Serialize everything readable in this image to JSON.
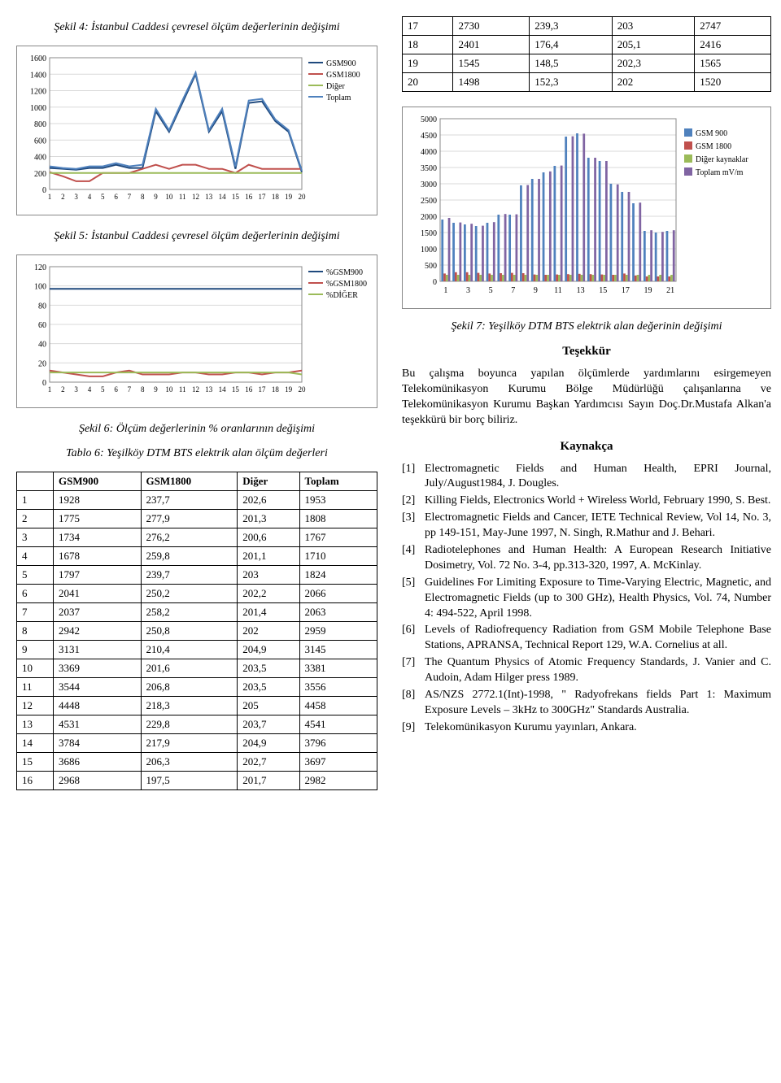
{
  "left": {
    "fig4_caption": "Şekil 4: İstanbul Caddesi çevresel ölçüm değerlerinin değişimi",
    "fig5_caption": "Şekil 5: İstanbul Caddesi çevresel ölçüm değerlerinin değişimi",
    "fig6_caption": "Şekil 6: Ölçüm değerlerinin % oranlarının değişimi",
    "table6_caption": "Tablo 6:  Yeşilköy DTM BTS elektrik alan ölçüm değerleri",
    "chart4": {
      "type": "line",
      "xticks": [
        "1",
        "2",
        "3",
        "4",
        "5",
        "6",
        "7",
        "8",
        "9",
        "10",
        "11",
        "12",
        "13",
        "14",
        "15",
        "16",
        "17",
        "18",
        "19",
        "20"
      ],
      "ylim": [
        0,
        1600
      ],
      "ytick_step": 200,
      "series": [
        {
          "name": "GSM900",
          "color": "#1f497d",
          "values": [
            260,
            250,
            240,
            260,
            260,
            300,
            260,
            260,
            950,
            700,
            1050,
            1400,
            700,
            950,
            250,
            1050,
            1070,
            830,
            700,
            210
          ]
        },
        {
          "name": "GSM1800",
          "color": "#c0504d",
          "values": [
            210,
            160,
            100,
            100,
            200,
            200,
            200,
            250,
            300,
            250,
            300,
            300,
            250,
            250,
            200,
            300,
            250,
            250,
            250,
            250
          ]
        },
        {
          "name": "Diğer",
          "color": "#9bbb59",
          "values": [
            200,
            200,
            200,
            200,
            200,
            200,
            200,
            200,
            200,
            200,
            200,
            200,
            200,
            200,
            200,
            200,
            200,
            200,
            200,
            200
          ]
        },
        {
          "name": "Toplam",
          "color": "#4f81bd",
          "values": [
            280,
            260,
            250,
            280,
            280,
            320,
            280,
            300,
            980,
            720,
            1080,
            1420,
            720,
            980,
            280,
            1080,
            1100,
            850,
            720,
            230
          ]
        }
      ],
      "grid_color": "#d9d9d9",
      "background_color": "#ffffff",
      "line_width": 2
    },
    "chart5": {
      "type": "line",
      "xticks": [
        "1",
        "2",
        "3",
        "4",
        "5",
        "6",
        "7",
        "8",
        "9",
        "10",
        "11",
        "12",
        "13",
        "14",
        "15",
        "16",
        "17",
        "18",
        "19",
        "20"
      ],
      "ylim": [
        0,
        120
      ],
      "ytick_step": 20,
      "series": [
        {
          "name": "%GSM900",
          "color": "#1f497d",
          "values": [
            97,
            97,
            97,
            97,
            97,
            97,
            97,
            97,
            97,
            97,
            97,
            97,
            97,
            97,
            97,
            97,
            97,
            97,
            97,
            97
          ]
        },
        {
          "name": "%GSM1800",
          "color": "#c0504d",
          "values": [
            12,
            10,
            8,
            6,
            6,
            10,
            12,
            8,
            8,
            8,
            10,
            10,
            8,
            8,
            10,
            10,
            8,
            10,
            10,
            12
          ]
        },
        {
          "name": "%DİĞER",
          "color": "#9bbb59",
          "values": [
            10,
            10,
            10,
            10,
            10,
            10,
            10,
            10,
            10,
            10,
            10,
            10,
            10,
            10,
            10,
            10,
            10,
            10,
            10,
            8
          ]
        }
      ],
      "grid_color": "#d9d9d9",
      "background_color": "#ffffff",
      "line_width": 2
    },
    "table6": {
      "columns": [
        "",
        "GSM900",
        "GSM1800",
        "Diğer",
        "Toplam"
      ],
      "rows": [
        [
          "1",
          "1928",
          "237,7",
          "202,6",
          "1953"
        ],
        [
          "2",
          "1775",
          "277,9",
          "201,3",
          "1808"
        ],
        [
          "3",
          "1734",
          "276,2",
          "200,6",
          "1767"
        ],
        [
          "4",
          "1678",
          "259,8",
          "201,1",
          "1710"
        ],
        [
          "5",
          "1797",
          "239,7",
          "203",
          "1824"
        ],
        [
          "6",
          "2041",
          "250,2",
          "202,2",
          "2066"
        ],
        [
          "7",
          "2037",
          "258,2",
          "201,4",
          "2063"
        ],
        [
          "8",
          "2942",
          "250,8",
          "202",
          "2959"
        ],
        [
          "9",
          "3131",
          "210,4",
          "204,9",
          "3145"
        ],
        [
          "10",
          "3369",
          "201,6",
          "203,5",
          "3381"
        ],
        [
          "11",
          "3544",
          "206,8",
          "203,5",
          "3556"
        ],
        [
          "12",
          "4448",
          "218,3",
          "205",
          "4458"
        ],
        [
          "13",
          "4531",
          "229,8",
          "203,7",
          "4541"
        ],
        [
          "14",
          "3784",
          "217,9",
          "204,9",
          "3796"
        ],
        [
          "15",
          "3686",
          "206,3",
          "202,7",
          "3697"
        ],
        [
          "16",
          "2968",
          "197,5",
          "201,7",
          "2982"
        ]
      ]
    }
  },
  "right": {
    "top_table": {
      "rows": [
        [
          "17",
          "2730",
          "239,3",
          "203",
          "2747"
        ],
        [
          "18",
          "2401",
          "176,4",
          "205,1",
          "2416"
        ],
        [
          "19",
          "1545",
          "148,5",
          "202,3",
          "1565"
        ],
        [
          "20",
          "1498",
          "152,3",
          "202",
          "1520"
        ]
      ]
    },
    "chart7": {
      "type": "bar",
      "xticks": [
        "1",
        "3",
        "5",
        "7",
        "9",
        "11",
        "13",
        "15",
        "17",
        "19",
        "21"
      ],
      "ylim": [
        0,
        5000
      ],
      "ytick_step": 500,
      "categories_count": 21,
      "series": [
        {
          "name": "GSM 900",
          "color": "#4f81bd",
          "values": [
            1900,
            1800,
            1750,
            1700,
            1800,
            2050,
            2050,
            2950,
            3150,
            3350,
            3550,
            4450,
            4550,
            3800,
            3700,
            3000,
            2750,
            2400,
            1550,
            1500,
            1550
          ]
        },
        {
          "name": "GSM 1800",
          "color": "#c0504d",
          "values": [
            240,
            280,
            280,
            260,
            240,
            250,
            260,
            250,
            210,
            200,
            210,
            220,
            230,
            220,
            210,
            200,
            240,
            180,
            150,
            150,
            150
          ]
        },
        {
          "name": "Diğer kaynaklar",
          "color": "#9bbb59",
          "values": [
            200,
            200,
            200,
            200,
            200,
            200,
            200,
            200,
            200,
            200,
            200,
            200,
            200,
            200,
            200,
            200,
            200,
            200,
            200,
            200,
            200
          ]
        },
        {
          "name": "Toplam mV/m",
          "color": "#8064a2",
          "values": [
            1950,
            1810,
            1770,
            1710,
            1820,
            2070,
            2060,
            2960,
            3150,
            3380,
            3560,
            4460,
            4540,
            3800,
            3700,
            2980,
            2750,
            2420,
            1570,
            1520,
            1570
          ]
        }
      ],
      "grid_color": "#d9d9d9",
      "background_color": "#ffffff",
      "bar_group_width": 0.8
    },
    "fig7_caption": "Şekil 7: Yeşilköy DTM BTS elektrik alan değerinin değişimi",
    "thanks_heading": "Teşekkür",
    "thanks_text": "Bu çalışma boyunca yapılan ölçümlerde yardımlarını esirgemeyen Telekomünikasyon Kurumu Bölge Müdürlüğü çalışanlarına ve Telekomünikasyon Kurumu Başkan Yardımcısı Sayın Doç.Dr.Mustafa Alkan'a teşekkürü bir borç biliriz.",
    "refs_heading": "Kaynakça",
    "refs": [
      "Electromagnetic Fields and Human Health, EPRI Journal, July/August1984, J. Dougles.",
      "Killing Fields, Electronics World + Wireless World, February 1990, S. Best.",
      "Electromagnetic Fields and Cancer, IETE Technical Review, Vol 14, No. 3, pp 149-151, May-June 1997, N. Singh, R.Mathur and J. Behari.",
      "Radiotelephones and Human Health: A European Research Initiative Dosimetry, Vol. 72 No. 3-4, pp.313-320, 1997, A. McKinlay.",
      "Guidelines For Limiting Exposure to Time-Varying Electric, Magnetic, and Electromagnetic Fields (up to 300 GHz), Health Physics, Vol. 74, Number 4: 494-522, April 1998.",
      "Levels of Radiofrequency Radiation from GSM Mobile Telephone Base Stations, APRANSA, Technical Report 129, W.A. Cornelius at all.",
      "The Quantum Physics of Atomic Frequency Standards, J. Vanier and C. Audoin, Adam Hilger press 1989.",
      "AS/NZS 2772.1(Int)-1998, \" Radyofrekans fields Part 1: Maximum Exposure Levels – 3kHz to 300GHz\" Standards Australia.",
      "Telekomünikasyon Kurumu yayınları, Ankara."
    ]
  }
}
